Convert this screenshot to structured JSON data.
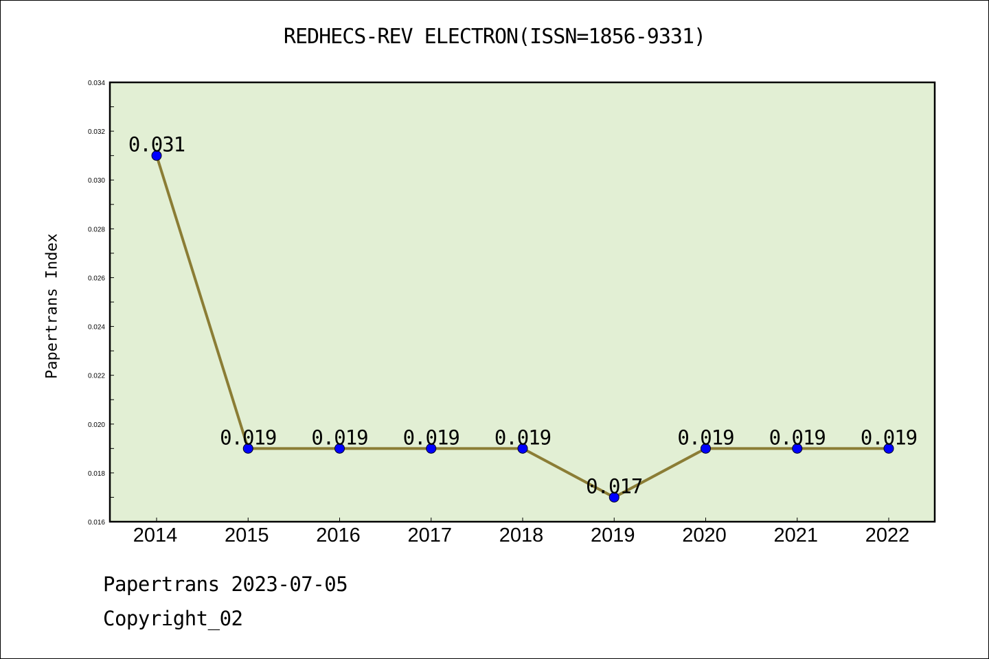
{
  "chart_data": {
    "type": "line",
    "title": "REDHECS-REV ELECTRON(ISSN=1856-9331)",
    "xlabel": "",
    "ylabel": "Papertrans Index",
    "categories": [
      "2014",
      "2015",
      "2016",
      "2017",
      "2018",
      "2019",
      "2020",
      "2021",
      "2022"
    ],
    "series": [
      {
        "values": [
          0.031,
          0.019,
          0.019,
          0.019,
          0.019,
          0.017,
          0.019,
          0.019,
          0.019
        ],
        "labels": [
          "0.031",
          "0.019",
          "0.019",
          "0.019",
          "0.019",
          "0.017",
          "0.019",
          "0.019",
          "0.019"
        ]
      }
    ],
    "ylim": [
      0.016,
      0.034
    ],
    "yticks": [
      "0.016",
      "0.018",
      "0.020",
      "0.022",
      "0.024",
      "0.026",
      "0.028",
      "0.030",
      "0.032",
      "0.034"
    ],
    "grid": false,
    "legend": "none",
    "colors": {
      "plot_background": "#e2efd4",
      "line": "#8b7d35",
      "marker": "#0000ff"
    }
  },
  "footer": {
    "line1": "Papertrans 2023-07-05",
    "line2": "Copyright_02"
  }
}
